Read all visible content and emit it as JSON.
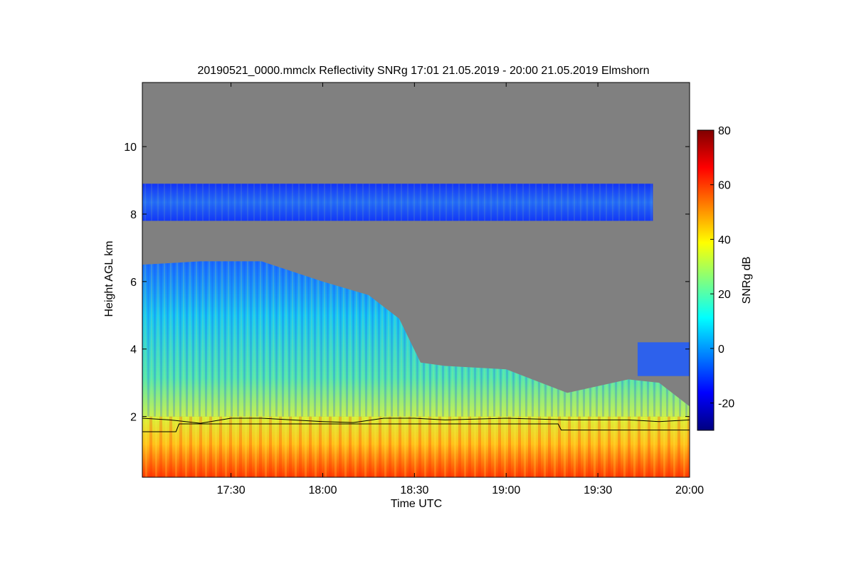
{
  "chart_data": {
    "type": "heatmap",
    "title": "20190521_0000.mmclx Reflectivity SNRg   17:01 21.05.2019 - 20:00 21.05.2019 Elmshorn",
    "xlabel": "Time UTC",
    "ylabel": "Height AGL km",
    "x_range_utc": [
      "17:01",
      "20:00"
    ],
    "x_ticks": [
      "17:30",
      "18:00",
      "18:30",
      "19:00",
      "19:30",
      "20:00"
    ],
    "ylim": [
      0.2,
      11.9
    ],
    "y_ticks": [
      2,
      4,
      6,
      8,
      10
    ],
    "colorbar": {
      "label": "SNRg dB",
      "range": [
        -30,
        80
      ],
      "ticks": [
        -20,
        0,
        20,
        40,
        60,
        80
      ],
      "colormap": "jet"
    },
    "background_color": "#808080",
    "regions": [
      {
        "name": "boundary-layer",
        "time_range": [
          "17:01",
          "20:00"
        ],
        "height_range_km": [
          0.2,
          2.0
        ],
        "snr_db_range": [
          35,
          70
        ]
      },
      {
        "name": "lower-cloud",
        "time_range": [
          "17:01",
          "18:38"
        ],
        "height_range_km": [
          2.0,
          6.6
        ],
        "snr_db_range": [
          -5,
          35
        ]
      },
      {
        "name": "low-cloud-later",
        "time_range": [
          "18:38",
          "20:00"
        ],
        "height_range_km": [
          2.0,
          3.5
        ],
        "snr_db_range": [
          -5,
          35
        ]
      },
      {
        "name": "upper-cloud-layer",
        "time_range": [
          "17:01",
          "19:48"
        ],
        "height_range_km": [
          7.8,
          8.9
        ],
        "snr_db_range": [
          -15,
          10
        ]
      },
      {
        "name": "late-cloud-top",
        "time_range": [
          "19:43",
          "20:00"
        ],
        "height_range_km": [
          3.2,
          4.2
        ],
        "snr_db_range": [
          -15,
          10
        ]
      }
    ],
    "cloud_top_profile": {
      "time_utc": [
        "17:01",
        "17:20",
        "17:40",
        "18:00",
        "18:15",
        "18:25",
        "18:32",
        "18:40",
        "19:00",
        "19:20",
        "19:40",
        "19:50",
        "20:00"
      ],
      "height_km": [
        6.5,
        6.6,
        6.6,
        6.0,
        5.6,
        4.9,
        3.6,
        3.5,
        3.4,
        2.7,
        3.1,
        3.0,
        2.3
      ]
    },
    "line_series": [
      {
        "time_utc": [
          "17:01",
          "17:10",
          "17:20",
          "17:30",
          "17:40",
          "17:50",
          "18:00",
          "18:10",
          "18:20",
          "18:30",
          "18:40",
          "19:00",
          "19:20",
          "19:40",
          "19:50",
          "20:00"
        ],
        "height_km": [
          1.95,
          1.9,
          1.8,
          1.95,
          1.95,
          1.9,
          1.85,
          1.82,
          1.95,
          1.95,
          1.9,
          1.95,
          1.9,
          1.9,
          1.85,
          1.9
        ]
      },
      {
        "time_utc": [
          "17:01",
          "17:12",
          "17:13",
          "19:17",
          "19:18",
          "20:00"
        ],
        "height_km": [
          1.55,
          1.55,
          1.78,
          1.78,
          1.6,
          1.6
        ]
      }
    ]
  }
}
